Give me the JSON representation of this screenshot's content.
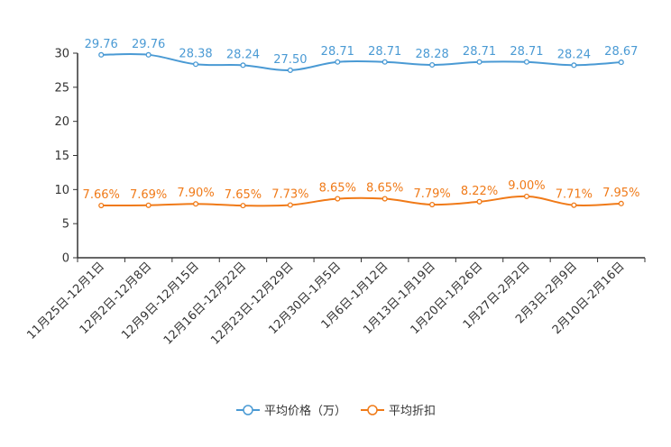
{
  "chart_data": {
    "type": "line",
    "title": "",
    "xlabel": "",
    "ylabel": "",
    "ylim": [
      0,
      30
    ],
    "yticks": [
      0,
      5,
      10,
      15,
      20,
      25,
      30
    ],
    "grid": false,
    "legend_position": "bottom-center",
    "categories": [
      "11月25日-12月1日",
      "12月2日-12月8日",
      "12月9日-12月15日",
      "12月16日-12月22日",
      "12月23日-12月29日",
      "12月30日-1月5日",
      "1月6日-1月12日",
      "1月13日-1月19日",
      "1月20日-1月26日",
      "1月27日-2月2日",
      "2月3日-2月9日",
      "2月10日-2月16日"
    ],
    "series": [
      {
        "name": "平均价格（万）",
        "color": "#4a9ad4",
        "values": [
          29.76,
          29.76,
          28.38,
          28.24,
          27.5,
          28.71,
          28.71,
          28.28,
          28.71,
          28.71,
          28.24,
          28.67
        ],
        "labels": [
          "29.76",
          "29.76",
          "28.38",
          "28.24",
          "27.50",
          "28.71",
          "28.71",
          "28.28",
          "28.71",
          "28.71",
          "28.24",
          "28.67"
        ]
      },
      {
        "name": "平均折扣",
        "color": "#f07a18",
        "values": [
          7.66,
          7.69,
          7.9,
          7.65,
          7.73,
          8.65,
          8.65,
          7.79,
          8.22,
          9.0,
          7.71,
          7.95
        ],
        "labels": [
          "7.66%",
          "7.69%",
          "7.90%",
          "7.65%",
          "7.73%",
          "8.65%",
          "8.65%",
          "7.79%",
          "8.22%",
          "9.00%",
          "7.71%",
          "7.95%"
        ]
      }
    ]
  }
}
